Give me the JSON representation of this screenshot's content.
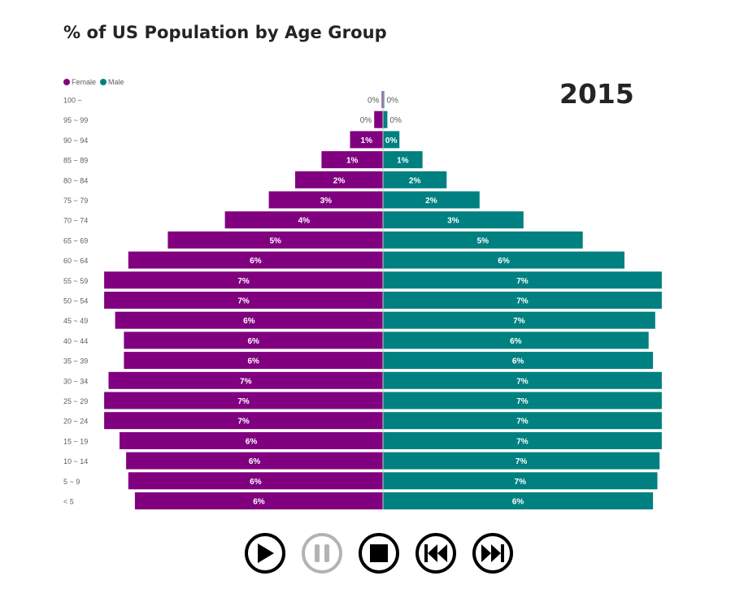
{
  "title": "% of US Population by Age Group",
  "year": "2015",
  "legend": {
    "female_label": "Female",
    "male_label": "Male"
  },
  "colors": {
    "female": "#800080",
    "male": "#008080",
    "disabled": "#b3b3b3"
  },
  "controls": {
    "play_icon": "play-icon",
    "pause_icon": "pause-icon",
    "stop_icon": "stop-icon",
    "previous_icon": "skip-back-icon",
    "next_icon": "skip-forward-icon",
    "pause_enabled": false
  },
  "chart_data": {
    "type": "bar",
    "orientation": "horizontal",
    "subtype": "population-pyramid",
    "title": "% of US Population by Age Group",
    "categories": [
      "100 ~",
      "95 ~ 99",
      "90 ~ 94",
      "85 ~ 89",
      "80 ~ 84",
      "75 ~ 79",
      "70 ~ 74",
      "65 ~ 69",
      "60 ~ 64",
      "55 ~ 59",
      "50 ~ 54",
      "45 ~ 49",
      "40 ~ 44",
      "35 ~ 39",
      "30 ~ 34",
      "25 ~ 29",
      "20 ~ 24",
      "15 ~ 19",
      "10 ~ 14",
      "5 ~ 9",
      "< 5"
    ],
    "series": [
      {
        "name": "Female",
        "color": "#800080",
        "values": [
          0.05,
          0.4,
          1.5,
          2.8,
          4.0,
          5.2,
          7.2,
          9.8,
          11.6,
          12.7,
          12.7,
          12.2,
          11.8,
          11.8,
          12.5,
          12.7,
          12.7,
          12.0,
          11.7,
          11.6,
          11.3
        ],
        "labels": [
          "0%",
          "0%",
          "1%",
          "1%",
          "2%",
          "3%",
          "4%",
          "5%",
          "6%",
          "7%",
          "7%",
          "6%",
          "6%",
          "6%",
          "7%",
          "7%",
          "7%",
          "6%",
          "6%",
          "6%",
          "6%"
        ]
      },
      {
        "name": "Male",
        "color": "#008080",
        "values": [
          0.03,
          0.2,
          0.75,
          1.8,
          2.9,
          4.4,
          6.4,
          9.1,
          11.0,
          12.7,
          12.7,
          12.4,
          12.1,
          12.3,
          12.7,
          12.7,
          12.7,
          12.7,
          12.6,
          12.5,
          12.3
        ],
        "labels": [
          "0%",
          "0%",
          "0%",
          "1%",
          "2%",
          "2%",
          "3%",
          "5%",
          "6%",
          "7%",
          "7%",
          "7%",
          "6%",
          "6%",
          "7%",
          "7%",
          "7%",
          "7%",
          "7%",
          "7%",
          "6%"
        ]
      }
    ],
    "legend": "top-left",
    "grid": false
  }
}
